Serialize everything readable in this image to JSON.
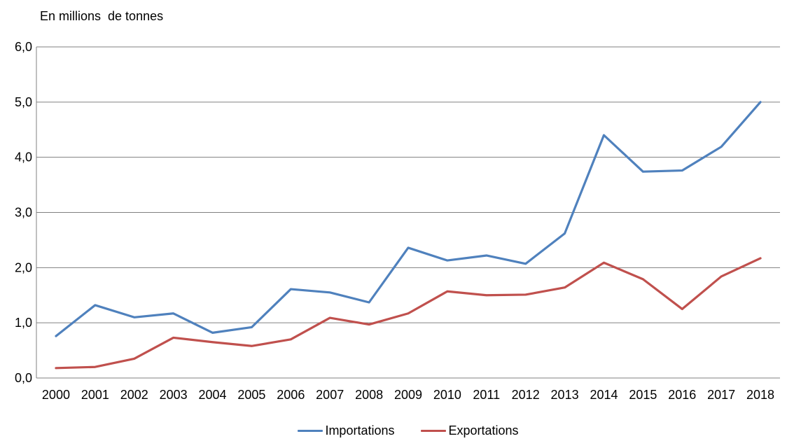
{
  "chart_data": {
    "type": "line",
    "title": "En millions  de tonnes",
    "categories": [
      "2000",
      "2001",
      "2002",
      "2003",
      "2004",
      "2005",
      "2006",
      "2007",
      "2008",
      "2009",
      "2010",
      "2011",
      "2012",
      "2013",
      "2014",
      "2015",
      "2016",
      "2017",
      "2018"
    ],
    "series": [
      {
        "name": "Importations",
        "color": "#4F81BD",
        "values": [
          0.76,
          1.32,
          1.1,
          1.17,
          0.82,
          0.92,
          1.61,
          1.55,
          1.37,
          2.36,
          2.13,
          2.22,
          2.07,
          2.62,
          4.4,
          3.74,
          3.76,
          4.19,
          5.0
        ]
      },
      {
        "name": "Exportations",
        "color": "#C0504D",
        "values": [
          0.18,
          0.2,
          0.35,
          0.73,
          0.65,
          0.58,
          0.7,
          1.09,
          0.97,
          1.17,
          1.57,
          1.5,
          1.51,
          1.64,
          2.09,
          1.79,
          1.25,
          1.84,
          2.17
        ]
      }
    ],
    "xlabel": "",
    "ylabel": "En millions  de tonnes",
    "ylim": [
      0,
      6
    ],
    "ytick_step": 1,
    "ytick_labels": [
      "0,0",
      "1,0",
      "2,0",
      "3,0",
      "4,0",
      "5,0",
      "6,0"
    ],
    "grid": "horizontal",
    "gridline_color": "#808080",
    "axis_text_color": "#000000",
    "legend_position": "bottom"
  }
}
